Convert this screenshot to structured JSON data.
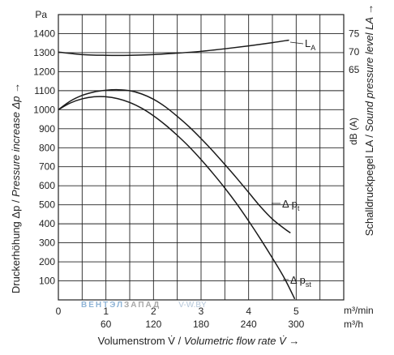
{
  "chart_data": {
    "type": "line",
    "left_axis": {
      "unit_label": "Pa",
      "ticks": [
        100,
        200,
        300,
        400,
        500,
        600,
        700,
        800,
        900,
        1000,
        1100,
        1200,
        1300,
        1400
      ],
      "range": [
        0,
        1500
      ],
      "label_de": "Druckerhöhung Δp / ",
      "label_en": "Pressure increase Δp →"
    },
    "right_axis": {
      "unit_label": "dB (A)",
      "ticks": [
        {
          "label": "65",
          "value": 65
        },
        {
          "label": "70",
          "value": 70
        },
        {
          "label": "75",
          "value": 75
        }
      ],
      "label_de": "Schalldruckpegel LA / ",
      "label_en": "Sound pressure level LA →"
    },
    "x_axis": {
      "ticks_m3min": [
        "0",
        "1",
        "2",
        "3",
        "4",
        "5"
      ],
      "ticks_m3h": [
        "60",
        "120",
        "180",
        "240",
        "300"
      ],
      "unit_m3min": "m³/min",
      "unit_m3h": "m³/h",
      "range": [
        0,
        6
      ],
      "label_de": "Volumenstrom V̇ / ",
      "label_en": "Volumetric flow rate V̇ →"
    },
    "grid": true,
    "series": [
      {
        "name": "LA",
        "axis": "right",
        "x": [
          0,
          0.5,
          1,
          1.5,
          2,
          2.5,
          3,
          3.5,
          4,
          4.5,
          4.85
        ],
        "y": [
          69.9,
          69.2,
          69.0,
          69.0,
          69.2,
          69.6,
          70.1,
          70.8,
          71.6,
          72.5,
          73.2
        ]
      },
      {
        "name": "Δ pt",
        "axis": "left",
        "x": [
          0,
          0.25,
          0.5,
          0.75,
          1.0,
          1.25,
          1.5,
          1.75,
          2.0,
          2.25,
          2.5,
          2.75,
          3.0,
          3.25,
          3.5,
          3.75,
          4.0,
          4.25,
          4.5,
          4.75,
          4.88
        ],
        "y": [
          1000,
          1045,
          1075,
          1093,
          1102,
          1105,
          1100,
          1083,
          1055,
          1015,
          965,
          910,
          848,
          782,
          712,
          640,
          565,
          490,
          425,
          375,
          352
        ]
      },
      {
        "name": "Δ pst",
        "axis": "left",
        "x": [
          0,
          0.25,
          0.5,
          0.75,
          1.0,
          1.25,
          1.5,
          1.75,
          2.0,
          2.25,
          2.5,
          2.75,
          3.0,
          3.25,
          3.5,
          3.75,
          4.0,
          4.25,
          4.5,
          4.75,
          4.97
        ],
        "y": [
          1000,
          1035,
          1057,
          1068,
          1068,
          1058,
          1038,
          1008,
          968,
          920,
          865,
          805,
          738,
          665,
          588,
          505,
          415,
          320,
          220,
          115,
          5
        ]
      }
    ],
    "curve_labels": {
      "la": {
        "main": "L",
        "sub": "A"
      },
      "pt": {
        "main": "Δ p",
        "sub": "t"
      },
      "pst": {
        "main": "Δ p",
        "sub": "st"
      }
    }
  },
  "watermark": {
    "part1": "ВЕНТЭЛ",
    "part2": "ЗАПАД",
    "part3": "V-W.BY"
  }
}
